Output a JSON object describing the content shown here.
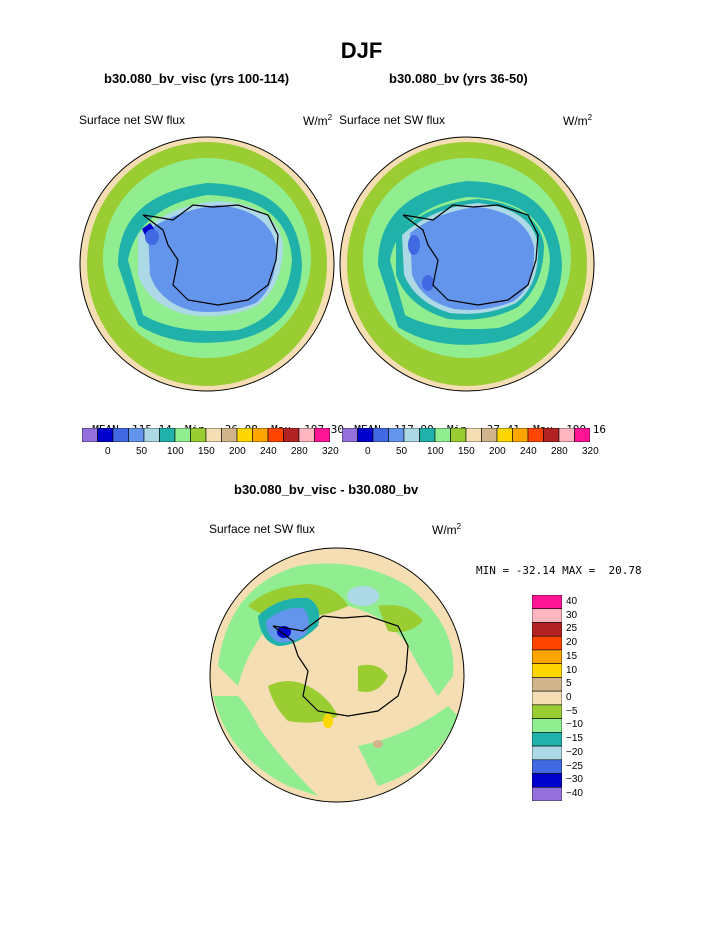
{
  "page_title": "DJF",
  "panels": [
    {
      "run_title": "b30.080_bv_visc (yrs 100-114)",
      "variable": "Surface net SW flux",
      "units_base": "W/m",
      "units_exp": "2",
      "stats": {
        "mean_label": "MEAN=",
        "mean": "115.14",
        "min_label": "Min=",
        "min": "36.08",
        "max_label": "Max=",
        "max": "197.30"
      }
    },
    {
      "run_title": "b30.080_bv (yrs 36-50)",
      "variable": "Surface net SW flux",
      "units_base": "W/m",
      "units_exp": "2",
      "stats": {
        "mean_label": "MEAN=",
        "mean": "117.90",
        "min_label": "Min=",
        "min": "37.41",
        "max_label": "Max=",
        "max": "190.16"
      }
    }
  ],
  "colorbar_top": {
    "colors": [
      "#9370db",
      "#0000cd",
      "#4169e1",
      "#6495ed",
      "#add8e6",
      "#20b2aa",
      "#90ee90",
      "#9acd32",
      "#f5deb3",
      "#d2b48c",
      "#ffd700",
      "#ffa500",
      "#ff4500",
      "#b22222",
      "#ffb6c1",
      "#ff1493"
    ],
    "tick_labels": [
      "0",
      "50",
      "100",
      "150",
      "200",
      "240",
      "280",
      "320"
    ]
  },
  "diff_panel": {
    "title": "b30.080_bv_visc - b30.080_bv",
    "variable": "Surface net SW flux",
    "units_base": "W/m",
    "units_exp": "2",
    "stats_text": "MIN = -32.14 MAX =  20.78"
  },
  "colorbar_diff": {
    "colors": [
      "#ff1493",
      "#ffb6c1",
      "#b22222",
      "#ff4500",
      "#ffa500",
      "#ffd700",
      "#d2b48c",
      "#f5deb3",
      "#9acd32",
      "#90ee90",
      "#20b2aa",
      "#add8e6",
      "#4169e1",
      "#0000cd",
      "#9370db"
    ],
    "tick_labels": [
      "40",
      "30",
      "25",
      "20",
      "15",
      "10",
      "5",
      "0",
      "−5",
      "−10",
      "−15",
      "−20",
      "−25",
      "−30",
      "−40"
    ]
  }
}
